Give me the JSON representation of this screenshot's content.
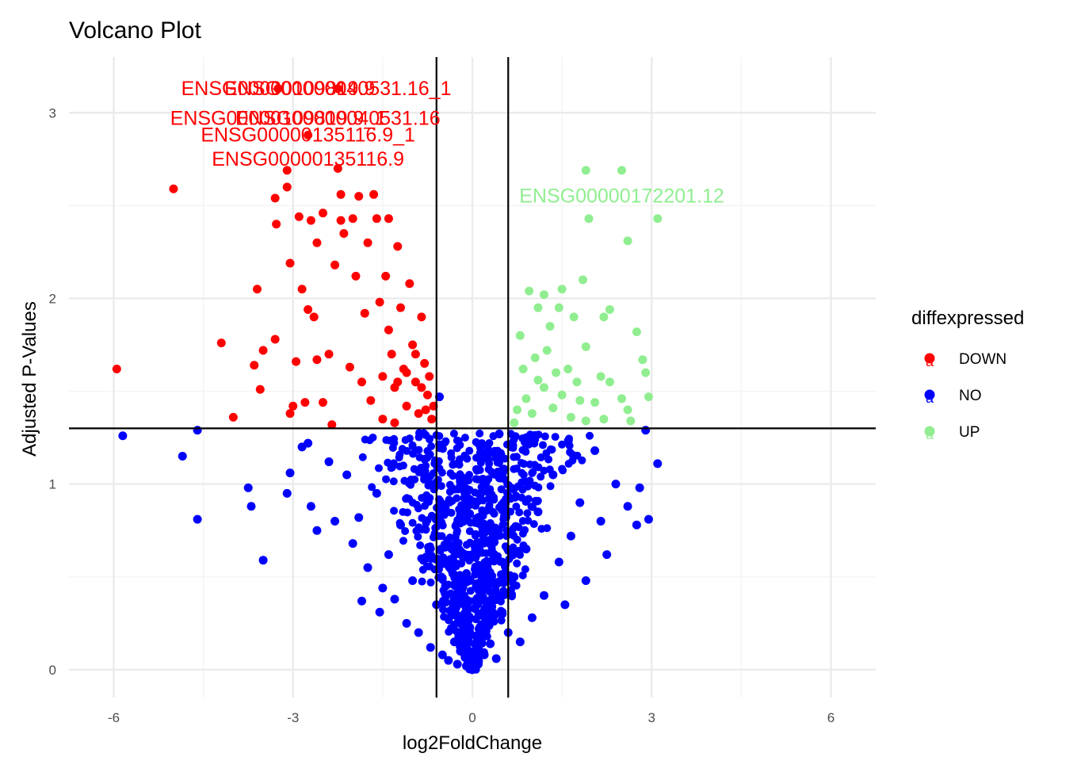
{
  "chart_data": {
    "type": "scatter",
    "title": "Volcano Plot",
    "xlabel": "log2FoldChange",
    "ylabel": "Adjusted P-Values",
    "xlim": [
      -6.75,
      6.75
    ],
    "ylim": [
      -0.15,
      3.3
    ],
    "x_ticks": [
      -6,
      -3,
      0,
      3,
      6
    ],
    "y_ticks": [
      0,
      1,
      2,
      3
    ],
    "grid": true,
    "legend": {
      "title": "diffexpressed",
      "position": "right",
      "key_glyph": "a",
      "entries": [
        {
          "label": "DOWN",
          "color": "#ff0000"
        },
        {
          "label": "NO",
          "color": "#0000ff"
        },
        {
          "label": "UP",
          "color": "#90ee90"
        }
      ]
    },
    "reference_lines": {
      "vertical": [
        -0.6,
        0.6
      ],
      "horizontal": [
        1.3
      ]
    },
    "labels": [
      {
        "text": "ENSG00000109819.9",
        "x": -3.25,
        "y": 3.13,
        "color": "#ff0000"
      },
      {
        "text": "ENSG00000040531.16_1",
        "x": -2.25,
        "y": 3.13,
        "color": "#ff0000"
      },
      {
        "text": "ENSG00000109819.9_1",
        "x": -3.25,
        "y": 2.97,
        "color": "#ff0000"
      },
      {
        "text": "ENSG00000040531.16",
        "x": -2.25,
        "y": 2.97,
        "color": "#ff0000"
      },
      {
        "text": "ENSG00000135116.9_1",
        "x": -2.75,
        "y": 2.88,
        "color": "#ff0000"
      },
      {
        "text": "ENSG00000135116.9",
        "x": -2.75,
        "y": 2.75,
        "color": "#ff0000"
      },
      {
        "text": "ENSG00000172201.12",
        "x": 2.5,
        "y": 2.55,
        "color": "#90ee90"
      }
    ],
    "series": [
      {
        "name": "DOWN",
        "color": "#ff0000",
        "points": [
          [
            -5.95,
            1.62
          ],
          [
            -5.0,
            2.59
          ],
          [
            -4.2,
            1.76
          ],
          [
            -4.0,
            1.36
          ],
          [
            -3.6,
            2.05
          ],
          [
            -3.65,
            1.64
          ],
          [
            -3.55,
            1.51
          ],
          [
            -3.5,
            1.72
          ],
          [
            -3.3,
            1.78
          ],
          [
            -3.25,
            3.13
          ],
          [
            -3.3,
            2.54
          ],
          [
            -3.28,
            2.4
          ],
          [
            -3.1,
            2.69
          ],
          [
            -3.1,
            2.6
          ],
          [
            -3.05,
            2.19
          ],
          [
            -3.05,
            1.38
          ],
          [
            -3.0,
            1.42
          ],
          [
            -2.95,
            1.66
          ],
          [
            -2.9,
            2.44
          ],
          [
            -2.85,
            2.05
          ],
          [
            -2.8,
            1.44
          ],
          [
            -2.75,
            2.88
          ],
          [
            -2.75,
            1.94
          ],
          [
            -2.7,
            2.42
          ],
          [
            -2.65,
            1.9
          ],
          [
            -2.6,
            1.67
          ],
          [
            -2.6,
            2.3
          ],
          [
            -2.5,
            2.46
          ],
          [
            -2.5,
            1.44
          ],
          [
            -2.4,
            1.7
          ],
          [
            -2.35,
            1.32
          ],
          [
            -2.3,
            2.18
          ],
          [
            -2.25,
            3.13
          ],
          [
            -2.25,
            2.7
          ],
          [
            -2.2,
            2.56
          ],
          [
            -2.2,
            2.42
          ],
          [
            -2.15,
            2.35
          ],
          [
            -2.05,
            1.63
          ],
          [
            -2.0,
            2.43
          ],
          [
            -1.95,
            2.12
          ],
          [
            -1.9,
            2.55
          ],
          [
            -1.85,
            1.55
          ],
          [
            -1.8,
            1.92
          ],
          [
            -1.75,
            2.3
          ],
          [
            -1.7,
            1.45
          ],
          [
            -1.65,
            2.56
          ],
          [
            -1.6,
            2.43
          ],
          [
            -1.55,
            1.98
          ],
          [
            -1.5,
            1.58
          ],
          [
            -1.45,
            2.12
          ],
          [
            -1.4,
            1.83
          ],
          [
            -1.4,
            2.43
          ],
          [
            -1.35,
            1.7
          ],
          [
            -1.3,
            1.52
          ],
          [
            -1.25,
            2.28
          ],
          [
            -1.2,
            1.95
          ],
          [
            -1.15,
            1.62
          ],
          [
            -1.1,
            1.42
          ],
          [
            -1.05,
            2.08
          ],
          [
            -1.0,
            1.75
          ],
          [
            -0.95,
            1.55
          ],
          [
            -0.9,
            1.38
          ],
          [
            -0.85,
            1.9
          ],
          [
            -0.8,
            1.65
          ],
          [
            -0.75,
            1.48
          ],
          [
            -0.72,
            1.58
          ],
          [
            -0.68,
            1.35
          ],
          [
            -0.65,
            1.42
          ],
          [
            -1.25,
            1.55
          ],
          [
            -1.1,
            1.6
          ],
          [
            -0.95,
            1.7
          ],
          [
            -0.85,
            1.52
          ],
          [
            -0.78,
            1.4
          ],
          [
            -1.3,
            1.33
          ],
          [
            -1.5,
            1.35
          ]
        ]
      },
      {
        "name": "NO",
        "color": "#0000ff",
        "points": [
          [
            -5.85,
            1.26
          ],
          [
            -4.85,
            1.15
          ],
          [
            -4.6,
            1.29
          ],
          [
            -4.6,
            0.81
          ],
          [
            -3.75,
            0.98
          ],
          [
            -3.7,
            0.88
          ],
          [
            -3.5,
            0.59
          ],
          [
            -3.1,
            0.95
          ],
          [
            -3.05,
            1.06
          ],
          [
            -2.85,
            1.2
          ],
          [
            -2.75,
            1.22
          ],
          [
            -2.7,
            0.88
          ],
          [
            -2.6,
            0.75
          ],
          [
            -2.4,
            1.12
          ],
          [
            -2.3,
            0.8
          ],
          [
            -2.1,
            1.05
          ],
          [
            -2.0,
            0.68
          ],
          [
            -1.9,
            0.82
          ],
          [
            -1.85,
            0.37
          ],
          [
            -1.75,
            0.55
          ],
          [
            -1.6,
            0.95
          ],
          [
            -1.55,
            0.31
          ],
          [
            -1.5,
            0.44
          ],
          [
            -1.4,
            0.62
          ],
          [
            -1.3,
            0.38
          ],
          [
            -1.2,
            0.78
          ],
          [
            -1.1,
            0.25
          ],
          [
            -1.0,
            0.48
          ],
          [
            -0.9,
            0.2
          ],
          [
            -0.8,
            0.6
          ],
          [
            -0.7,
            0.12
          ],
          [
            -0.6,
            0.35
          ],
          [
            -0.5,
            0.08
          ],
          [
            -0.45,
            0.45
          ],
          [
            -0.4,
            0.05
          ],
          [
            -0.35,
            0.22
          ],
          [
            -0.3,
            0.15
          ],
          [
            -0.25,
            0.03
          ],
          [
            -0.2,
            0.1
          ],
          [
            -0.1,
            0.02
          ],
          [
            0.0,
            0.0
          ],
          [
            0.1,
            0.03
          ],
          [
            0.2,
            0.08
          ],
          [
            0.3,
            0.14
          ],
          [
            0.4,
            0.06
          ],
          [
            0.5,
            0.3
          ],
          [
            0.6,
            0.2
          ],
          [
            0.7,
            0.5
          ],
          [
            0.8,
            0.15
          ],
          [
            0.9,
            0.65
          ],
          [
            1.0,
            0.28
          ],
          [
            1.1,
            0.85
          ],
          [
            1.2,
            0.4
          ],
          [
            1.35,
            1.05
          ],
          [
            1.45,
            0.58
          ],
          [
            1.55,
            0.35
          ],
          [
            1.65,
            0.72
          ],
          [
            1.8,
            0.9
          ],
          [
            1.9,
            0.48
          ],
          [
            2.05,
            1.18
          ],
          [
            2.15,
            0.8
          ],
          [
            2.25,
            0.62
          ],
          [
            2.4,
            1.0
          ],
          [
            2.6,
            0.88
          ],
          [
            2.75,
            0.78
          ],
          [
            2.9,
            1.29
          ],
          [
            2.95,
            0.81
          ],
          [
            3.1,
            1.11
          ],
          [
            2.8,
            0.98
          ],
          [
            0.45,
            1.27
          ],
          [
            -0.55,
            1.47
          ]
        ]
      },
      {
        "name": "UP",
        "color": "#90ee90",
        "points": [
          [
            1.9,
            2.69
          ],
          [
            2.5,
            2.69
          ],
          [
            1.95,
            2.43
          ],
          [
            3.1,
            2.43
          ],
          [
            2.6,
            2.31
          ],
          [
            1.85,
            2.1
          ],
          [
            0.95,
            2.04
          ],
          [
            1.2,
            2.02
          ],
          [
            1.5,
            2.05
          ],
          [
            1.1,
            1.95
          ],
          [
            1.45,
            1.95
          ],
          [
            1.7,
            1.9
          ],
          [
            2.2,
            1.9
          ],
          [
            2.3,
            1.94
          ],
          [
            0.8,
            1.8
          ],
          [
            1.3,
            1.85
          ],
          [
            1.9,
            1.74
          ],
          [
            2.75,
            1.82
          ],
          [
            1.25,
            1.72
          ],
          [
            1.05,
            1.68
          ],
          [
            1.6,
            1.62
          ],
          [
            2.15,
            1.58
          ],
          [
            2.3,
            1.55
          ],
          [
            0.85,
            1.62
          ],
          [
            1.2,
            1.52
          ],
          [
            1.5,
            1.48
          ],
          [
            1.8,
            1.45
          ],
          [
            2.05,
            1.44
          ],
          [
            2.5,
            1.46
          ],
          [
            2.95,
            1.47
          ],
          [
            0.75,
            1.4
          ],
          [
            1.0,
            1.38
          ],
          [
            1.35,
            1.41
          ],
          [
            1.65,
            1.36
          ],
          [
            1.9,
            1.34
          ],
          [
            2.2,
            1.35
          ],
          [
            2.6,
            1.4
          ],
          [
            0.7,
            1.33
          ],
          [
            0.9,
            1.46
          ],
          [
            1.1,
            1.56
          ],
          [
            1.4,
            1.6
          ],
          [
            1.75,
            1.55
          ],
          [
            2.9,
            1.6
          ],
          [
            2.85,
            1.67
          ],
          [
            2.65,
            1.34
          ]
        ]
      }
    ]
  }
}
